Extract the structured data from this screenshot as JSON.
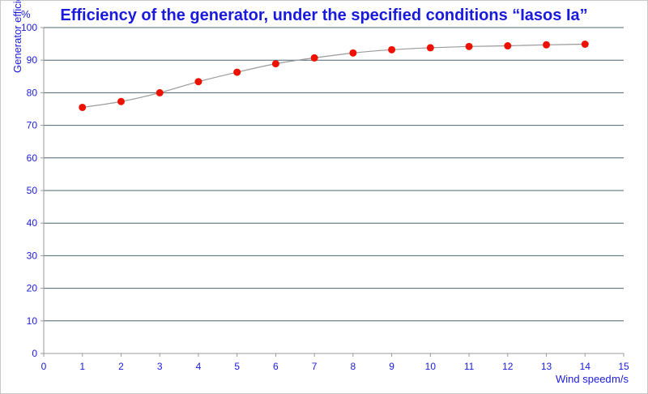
{
  "colors": {
    "text": "#1a1adc",
    "grid": "#4b6470",
    "axis": "#9a9a9a",
    "line": "#9a9a9a",
    "point": "#ee1100",
    "border": "#c8c8c8"
  },
  "chart_data": {
    "type": "line",
    "title": "Efficiency of the generator, under the specified conditions “Iasos Ia”",
    "xlabel": "Wind speed",
    "xunit": "m/s",
    "ylabel": "Generator efficiency",
    "yunit": "%",
    "xlim": [
      0,
      15
    ],
    "ylim": [
      0,
      100
    ],
    "xticks": [
      0,
      1,
      2,
      3,
      4,
      5,
      6,
      7,
      8,
      9,
      10,
      11,
      12,
      13,
      14,
      15
    ],
    "yticks": [
      0,
      10,
      20,
      30,
      40,
      50,
      60,
      70,
      80,
      90,
      100
    ],
    "grid": true,
    "x": [
      1,
      2,
      3,
      4,
      5,
      6,
      7,
      8,
      9,
      10,
      11,
      12,
      13,
      14
    ],
    "series": [
      {
        "values": [
          75.5,
          77.3,
          80.0,
          83.4,
          86.3,
          88.9,
          90.7,
          92.2,
          93.2,
          93.8,
          94.2,
          94.4,
          94.7,
          94.9
        ]
      }
    ]
  }
}
